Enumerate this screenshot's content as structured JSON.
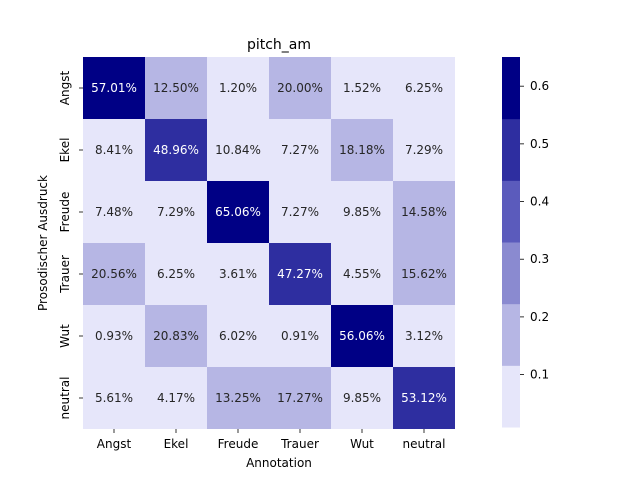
{
  "chart_data": {
    "type": "heatmap",
    "title": "pitch_am",
    "xlabel": "Annotation",
    "ylabel": "Prosodischer Ausdruck",
    "x_categories": [
      "Angst",
      "Ekel",
      "Freude",
      "Trauer",
      "Wut",
      "neutral"
    ],
    "y_categories": [
      "Angst",
      "Ekel",
      "Freude",
      "Trauer",
      "Wut",
      "neutral"
    ],
    "values": [
      [
        0.5701,
        0.125,
        0.012,
        0.2,
        0.0152,
        0.0625
      ],
      [
        0.0841,
        0.4896,
        0.1084,
        0.0727,
        0.1818,
        0.0729
      ],
      [
        0.0748,
        0.0729,
        0.6506,
        0.0727,
        0.0985,
        0.1458
      ],
      [
        0.2056,
        0.0625,
        0.0361,
        0.4727,
        0.0455,
        0.1562
      ],
      [
        0.0093,
        0.2083,
        0.0602,
        0.0091,
        0.5606,
        0.0312
      ],
      [
        0.0561,
        0.0417,
        0.1325,
        0.1727,
        0.0985,
        0.5312
      ]
    ],
    "annotations": [
      [
        "57.01%",
        "12.50%",
        "1.20%",
        "20.00%",
        "1.52%",
        "6.25%"
      ],
      [
        "8.41%",
        "48.96%",
        "10.84%",
        "7.27%",
        "18.18%",
        "7.29%"
      ],
      [
        "7.48%",
        "7.29%",
        "65.06%",
        "7.27%",
        "9.85%",
        "14.58%"
      ],
      [
        "20.56%",
        "6.25%",
        "3.61%",
        "47.27%",
        "4.55%",
        "15.62%"
      ],
      [
        "0.93%",
        "20.83%",
        "6.02%",
        "0.91%",
        "56.06%",
        "3.12%"
      ],
      [
        "5.61%",
        "4.17%",
        "13.25%",
        "17.27%",
        "9.85%",
        "53.12%"
      ]
    ],
    "colorbar": {
      "ticks": [
        "0.1",
        "0.2",
        "0.3",
        "0.4",
        "0.5",
        "0.6"
      ],
      "tick_values": [
        0.1,
        0.2,
        0.3,
        0.4,
        0.5,
        0.6
      ],
      "range": [
        0.0091,
        0.6506
      ],
      "levels": [
        "#e6e6fa",
        "#b6b6e4",
        "#8a8ad0",
        "#5b5bbc",
        "#2e2ea0",
        "#000085"
      ]
    },
    "grid": false
  }
}
